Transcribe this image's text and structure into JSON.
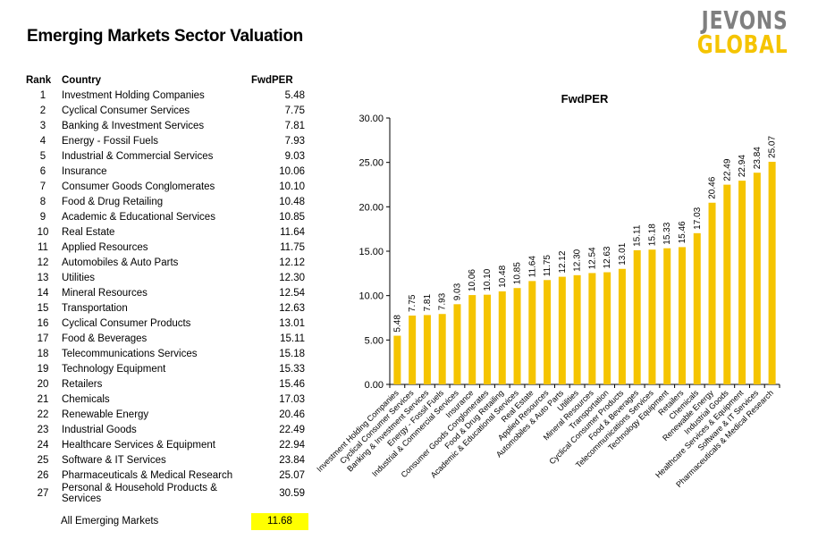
{
  "header": {
    "title": "Emerging Markets Sector Valuation"
  },
  "logo": {
    "line1": "JEVONS",
    "line2": "GLOBAL"
  },
  "table": {
    "headers": {
      "rank": "Rank",
      "country": "Country",
      "value": "FwdPER"
    },
    "rows": [
      {
        "rank": "1",
        "country": "Investment Holding Companies",
        "value": "5.48"
      },
      {
        "rank": "2",
        "country": "Cyclical Consumer Services",
        "value": "7.75"
      },
      {
        "rank": "3",
        "country": "Banking & Investment Services",
        "value": "7.81"
      },
      {
        "rank": "4",
        "country": "Energy - Fossil Fuels",
        "value": "7.93"
      },
      {
        "rank": "5",
        "country": "Industrial & Commercial Services",
        "value": "9.03"
      },
      {
        "rank": "6",
        "country": "Insurance",
        "value": "10.06"
      },
      {
        "rank": "7",
        "country": "Consumer Goods Conglomerates",
        "value": "10.10"
      },
      {
        "rank": "8",
        "country": "Food & Drug Retailing",
        "value": "10.48"
      },
      {
        "rank": "9",
        "country": "Academic & Educational Services",
        "value": "10.85"
      },
      {
        "rank": "10",
        "country": "Real Estate",
        "value": "11.64"
      },
      {
        "rank": "11",
        "country": "Applied Resources",
        "value": "11.75"
      },
      {
        "rank": "12",
        "country": "Automobiles & Auto Parts",
        "value": "12.12"
      },
      {
        "rank": "13",
        "country": "Utilities",
        "value": "12.30"
      },
      {
        "rank": "14",
        "country": "Mineral Resources",
        "value": "12.54"
      },
      {
        "rank": "15",
        "country": "Transportation",
        "value": "12.63"
      },
      {
        "rank": "16",
        "country": "Cyclical Consumer Products",
        "value": "13.01"
      },
      {
        "rank": "17",
        "country": "Food & Beverages",
        "value": "15.11"
      },
      {
        "rank": "18",
        "country": "Telecommunications Services",
        "value": "15.18"
      },
      {
        "rank": "19",
        "country": "Technology Equipment",
        "value": "15.33"
      },
      {
        "rank": "20",
        "country": "Retailers",
        "value": "15.46"
      },
      {
        "rank": "21",
        "country": "Chemicals",
        "value": "17.03"
      },
      {
        "rank": "22",
        "country": "Renewable Energy",
        "value": "20.46"
      },
      {
        "rank": "23",
        "country": "Industrial Goods",
        "value": "22.49"
      },
      {
        "rank": "24",
        "country": "Healthcare Services & Equipment",
        "value": "22.94"
      },
      {
        "rank": "25",
        "country": "Software & IT Services",
        "value": "23.84"
      },
      {
        "rank": "26",
        "country": "Pharmaceuticals & Medical Research",
        "value": "25.07"
      },
      {
        "rank": "27",
        "country": "Personal & Household Products & Services",
        "value": "30.59"
      }
    ],
    "summary": {
      "label": "All Emerging Markets",
      "value": "11.68"
    }
  },
  "chart_data": {
    "type": "bar",
    "title": "FwdPER",
    "xlabel": "",
    "ylabel": "",
    "ylim": [
      0,
      30
    ],
    "yticks": [
      "0.00",
      "5.00",
      "10.00",
      "15.00",
      "20.00",
      "25.00",
      "30.00"
    ],
    "grid": false,
    "bar_color": "#f5c400",
    "categories": [
      "Investment Holding Companies",
      "Cyclical Consumer Services",
      "Banking & Investment Services",
      "Energy - Fossil Fuels",
      "Industrial & Commercial Services",
      "Insurance",
      "Consumer Goods Conglomerates",
      "Food & Drug Retailing",
      "Academic & Educational Services",
      "Real Estate",
      "Applied Resources",
      "Automobiles & Auto Parts",
      "Utilities",
      "Mineral Resources",
      "Transportation",
      "Cyclical Consumer Products",
      "Food & Beverages",
      "Telecommunications Services",
      "Technology Equipment",
      "Retailers",
      "Chemicals",
      "Renewable Energy",
      "Industrial Goods",
      "Healthcare Services & Equipment",
      "Software & IT Services",
      "Pharmaceuticals & Medical Research"
    ],
    "values": [
      5.48,
      7.75,
      7.81,
      7.93,
      9.03,
      10.06,
      10.1,
      10.48,
      10.85,
      11.64,
      11.75,
      12.12,
      12.3,
      12.54,
      12.63,
      13.01,
      15.11,
      15.18,
      15.33,
      15.46,
      17.03,
      20.46,
      22.49,
      22.94,
      23.84,
      25.07
    ],
    "value_labels": [
      "5.48",
      "7.75",
      "7.81",
      "7.93",
      "9.03",
      "10.06",
      "10.10",
      "10.48",
      "10.85",
      "11.64",
      "11.75",
      "12.12",
      "12.30",
      "12.54",
      "12.63",
      "13.01",
      "15.11",
      "15.18",
      "15.33",
      "15.46",
      "17.03",
      "20.46",
      "22.49",
      "22.94",
      "23.84",
      "25.07"
    ]
  }
}
